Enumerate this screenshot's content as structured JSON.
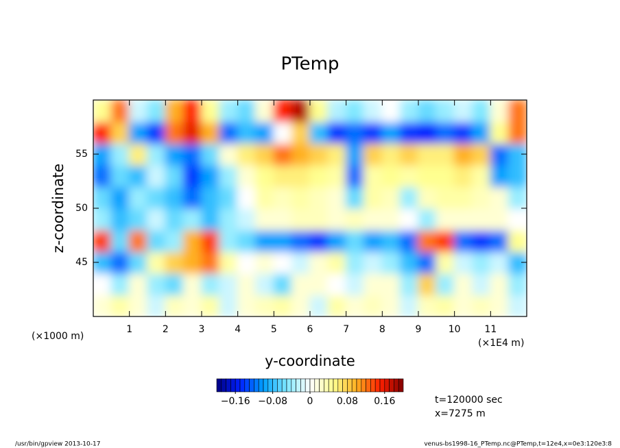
{
  "chart_data": {
    "type": "heatmap",
    "title": "PTemp",
    "xlabel": "y-coordinate",
    "ylabel": "z-coordinate",
    "xunit_label": "(×1000 m)",
    "xscale_label": "(×1E4 m)",
    "annotations": [
      "t=120000 sec",
      "x=7275 m"
    ],
    "footer_left": "/usr/bin/gpview  2013-10-17",
    "footer_right": "venus-bs1998-16_PTemp.nc@PTemp,t=12e4,x=0e3:120e3:8",
    "xlim": [
      0,
      12
    ],
    "ylim": [
      40,
      60
    ],
    "xticks": [
      1,
      2,
      3,
      4,
      5,
      6,
      7,
      8,
      9,
      10,
      11
    ],
    "yticks": [
      45,
      50,
      55
    ],
    "x": [
      0.25,
      0.75,
      1.25,
      1.75,
      2.25,
      2.75,
      3.25,
      3.75,
      4.25,
      4.75,
      5.25,
      5.75,
      6.25,
      6.75,
      7.25,
      7.75,
      8.25,
      8.75,
      9.25,
      9.75,
      10.25,
      10.75,
      11.25,
      11.75
    ],
    "y": [
      41,
      43,
      45,
      47,
      49,
      51,
      53,
      55,
      57,
      59
    ],
    "values": [
      [
        0.02,
        0.04,
        0.02,
        -0.02,
        0.03,
        0.02,
        0.04,
        -0.02,
        0.02,
        0.03,
        0.04,
        0.02,
        -0.02,
        0.04,
        0.02,
        0.03,
        0.02,
        -0.02,
        0.03,
        0.04,
        0.02,
        0.03,
        0.02,
        -0.02
      ],
      [
        0.0,
        -0.04,
        0.02,
        -0.04,
        -0.06,
        0.02,
        -0.04,
        -0.02,
        0.02,
        -0.02,
        -0.06,
        0.02,
        0.02,
        0.0,
        -0.02,
        0.02,
        0.02,
        -0.04,
        0.08,
        -0.04,
        0.02,
        -0.02,
        0.02,
        -0.04
      ],
      [
        -0.08,
        -0.12,
        -0.06,
        0.04,
        0.08,
        0.1,
        0.12,
        0.04,
        0.0,
        0.02,
        0.0,
        -0.02,
        0.02,
        0.04,
        -0.04,
        -0.02,
        -0.04,
        -0.08,
        -0.12,
        0.04,
        -0.02,
        -0.04,
        -0.02,
        -0.08
      ],
      [
        0.14,
        -0.06,
        0.12,
        -0.06,
        -0.04,
        0.1,
        0.14,
        -0.04,
        -0.06,
        -0.1,
        -0.1,
        -0.12,
        -0.14,
        -0.1,
        -0.06,
        -0.1,
        -0.08,
        -0.12,
        0.12,
        0.14,
        -0.12,
        -0.14,
        -0.12,
        0.05
      ],
      [
        -0.04,
        -0.08,
        -0.06,
        -0.02,
        -0.06,
        -0.04,
        -0.08,
        -0.04,
        -0.02,
        0.02,
        0.02,
        0.03,
        0.03,
        0.02,
        0.03,
        0.02,
        0.02,
        0.0,
        -0.04,
        0.02,
        0.02,
        0.02,
        0.02,
        0.0
      ],
      [
        -0.06,
        -0.1,
        -0.04,
        -0.06,
        -0.08,
        -0.12,
        -0.08,
        -0.06,
        0.0,
        0.04,
        0.03,
        0.04,
        0.03,
        0.02,
        -0.06,
        0.04,
        0.03,
        -0.04,
        0.03,
        0.04,
        0.04,
        0.03,
        0.02,
        -0.04
      ],
      [
        -0.12,
        -0.06,
        -0.08,
        -0.02,
        -0.06,
        -0.14,
        -0.1,
        -0.04,
        0.02,
        0.05,
        0.06,
        0.06,
        0.05,
        0.04,
        -0.12,
        0.04,
        0.05,
        0.04,
        0.05,
        0.05,
        0.06,
        0.04,
        -0.1,
        -0.08
      ],
      [
        -0.1,
        -0.04,
        0.06,
        -0.04,
        -0.1,
        -0.12,
        -0.06,
        0.02,
        0.06,
        0.08,
        0.12,
        0.1,
        0.08,
        0.06,
        -0.1,
        0.08,
        0.06,
        0.08,
        0.06,
        0.06,
        0.1,
        0.08,
        -0.12,
        -0.08
      ],
      [
        0.15,
        0.08,
        -0.1,
        -0.14,
        0.12,
        0.16,
        0.1,
        -0.12,
        -0.08,
        -0.1,
        0.0,
        0.08,
        -0.08,
        -0.14,
        -0.12,
        -0.14,
        -0.1,
        -0.14,
        -0.15,
        -0.12,
        -0.14,
        -0.1,
        0.05,
        0.12
      ],
      [
        0.05,
        0.12,
        -0.02,
        -0.05,
        0.1,
        0.15,
        0.05,
        -0.04,
        -0.06,
        0.02,
        0.15,
        0.18,
        0.05,
        -0.03,
        -0.05,
        -0.02,
        0.0,
        -0.04,
        -0.06,
        -0.04,
        -0.02,
        -0.05,
        0.02,
        0.12
      ]
    ],
    "clim": [
      -0.2,
      0.2
    ],
    "colormap": [
      "#000080",
      "#0020ff",
      "#00a0ff",
      "#80e8ff",
      "#ffffff",
      "#ffff90",
      "#ffb020",
      "#ff2000",
      "#800000"
    ],
    "cticks": [
      {
        "value": -0.16,
        "label": "−0.16"
      },
      {
        "value": -0.08,
        "label": "−0.08"
      },
      0,
      0.08,
      0.16
    ]
  }
}
